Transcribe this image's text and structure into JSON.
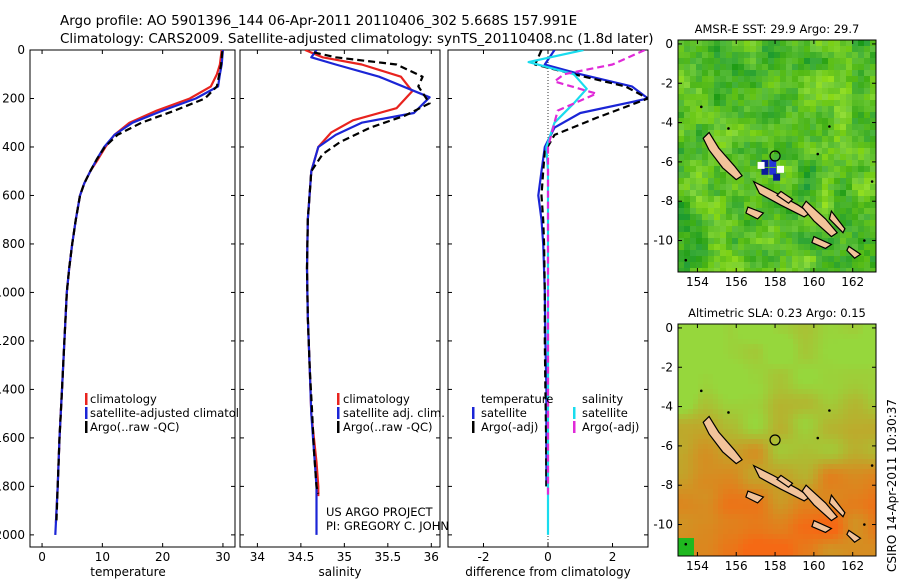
{
  "header": {
    "line1": "Argo profile: AO 5901396_144 06-Apr-2011 20110406_302 5.668S 157.991E",
    "line2": "Climatology: CARS2009. Satellite-adjusted climatology: synTS_20110408.nc (1.8d later)"
  },
  "side_label": "CSIRO 14-Apr-2011 10:30:37",
  "colors": {
    "climatology": "#e8231e",
    "satellite": "#1b25d6",
    "argo": "#000000",
    "cyan": "#19dcee",
    "magenta": "#e02ad8"
  },
  "chart_data": [
    {
      "type": "line",
      "xlabel": "temperature",
      "ylim": [
        2050,
        0
      ],
      "xlim": [
        -2,
        32
      ],
      "yticks": [
        "0",
        "200",
        "400",
        "600",
        "800",
        "1000",
        "1200",
        "1400",
        "1600",
        "1800",
        "2000"
      ],
      "xticks": [
        "0",
        "10",
        "20",
        "30"
      ],
      "legend": [
        "climatology",
        "satellite-adjusted climatology",
        "Argo(..raw -QC)"
      ],
      "series": [
        {
          "name": "climatology",
          "style": "solid",
          "color": "climatology",
          "x": [
            29.8,
            29.5,
            29.0,
            28.0,
            24.5,
            19.0,
            14.5,
            12.0,
            10.5,
            9.3,
            8.0,
            7.0,
            6.3,
            5.6,
            5.0,
            4.5,
            4.1,
            3.7,
            3.3,
            2.9,
            2.6,
            2.3
          ],
          "y": [
            0,
            60,
            100,
            150,
            200,
            250,
            300,
            350,
            400,
            450,
            500,
            550,
            600,
            700,
            800,
            900,
            1000,
            1200,
            1400,
            1600,
            1800,
            1950
          ]
        },
        {
          "name": "satellite-adjusted climatology",
          "style": "solid",
          "color": "satellite",
          "x": [
            30.0,
            29.8,
            29.5,
            29.2,
            25.5,
            20.0,
            15.0,
            12.0,
            10.3,
            9.1,
            8.0,
            7.0,
            6.3,
            5.6,
            5.0,
            4.5,
            4.1,
            3.7,
            3.3,
            2.9,
            2.6,
            2.3,
            2.2
          ],
          "y": [
            0,
            60,
            100,
            150,
            200,
            250,
            300,
            350,
            400,
            450,
            500,
            550,
            600,
            700,
            800,
            900,
            1000,
            1200,
            1400,
            1600,
            1800,
            1950,
            2000
          ]
        },
        {
          "name": "Argo(..raw -QC)",
          "style": "dashed",
          "color": "argo",
          "x": [
            29.9,
            29.7,
            29.4,
            29.0,
            27.0,
            22.0,
            16.5,
            12.5,
            10.4,
            9.1,
            8.0,
            7.0,
            6.3,
            5.6,
            5.0,
            4.5,
            4.1,
            3.7,
            3.3,
            2.9,
            2.6,
            2.4
          ],
          "y": [
            5,
            60,
            100,
            150,
            200,
            250,
            300,
            350,
            400,
            450,
            500,
            550,
            600,
            700,
            800,
            900,
            1000,
            1200,
            1400,
            1600,
            1800,
            1940
          ]
        }
      ]
    },
    {
      "type": "line",
      "xlabel": "salinity",
      "ylim": [
        2050,
        0
      ],
      "xlim": [
        33.8,
        36.1
      ],
      "xticks": [
        "34",
        "34.5",
        "35",
        "35.5",
        "36"
      ],
      "legend": [
        "climatology",
        "satellite adj. clim.",
        "Argo(..raw -QC)"
      ],
      "series": [
        {
          "name": "climatology",
          "style": "solid",
          "color": "climatology",
          "x": [
            34.55,
            34.75,
            35.2,
            35.65,
            35.78,
            35.6,
            35.1,
            34.85,
            34.7,
            34.62,
            34.58,
            34.57,
            34.58,
            34.6,
            34.62,
            34.65,
            34.68,
            34.7,
            34.7
          ],
          "y": [
            0,
            30,
            60,
            110,
            170,
            240,
            290,
            340,
            400,
            500,
            700,
            900,
            1100,
            1300,
            1500,
            1600,
            1700,
            1800,
            1840
          ]
        },
        {
          "name": "satellite adj. clim.",
          "style": "solid",
          "color": "satellite",
          "x": [
            34.68,
            34.62,
            34.9,
            35.4,
            35.98,
            35.8,
            35.2,
            34.9,
            34.7,
            34.62,
            34.58,
            34.57,
            34.58,
            34.6,
            34.62,
            34.64,
            34.66,
            34.68,
            34.68
          ],
          "y": [
            0,
            30,
            60,
            110,
            195,
            260,
            300,
            350,
            400,
            500,
            700,
            900,
            1100,
            1300,
            1500,
            1600,
            1700,
            1800,
            2000
          ]
        },
        {
          "name": "Argo(..raw -QC)",
          "style": "dashed",
          "color": "argo",
          "x": [
            34.65,
            34.9,
            35.6,
            35.9,
            35.85,
            35.98,
            35.7,
            35.3,
            34.95,
            34.75,
            34.62,
            34.58,
            34.57,
            34.58,
            34.6,
            34.63,
            34.65,
            34.68,
            34.7
          ],
          "y": [
            10,
            30,
            60,
            110,
            150,
            220,
            270,
            320,
            380,
            430,
            500,
            700,
            900,
            1100,
            1300,
            1500,
            1650,
            1800,
            1830
          ]
        }
      ]
    },
    {
      "type": "line",
      "xlabel": "difference from climatology",
      "ylim": [
        2050,
        0
      ],
      "xlim": [
        -3.1,
        3.1
      ],
      "xticks": [
        "-2",
        "0",
        "2"
      ],
      "legend": [
        "temperature",
        "satellite",
        "Argo(-adj)",
        "salinity",
        "satellite",
        "Argo(-adj)"
      ],
      "series": [
        {
          "name": "temperature satellite",
          "style": "solid",
          "color": "satellite",
          "x": [
            0.2,
            -0.1,
            1.0,
            2.6,
            3.1,
            1.0,
            0.2,
            -0.1,
            -0.2,
            -0.3,
            -0.2,
            -0.15,
            -0.1,
            -0.08,
            -0.05,
            -0.05,
            -0.05
          ],
          "y": [
            0,
            60,
            100,
            150,
            200,
            260,
            320,
            400,
            500,
            600,
            700,
            800,
            1000,
            1200,
            1400,
            1600,
            1800
          ]
        },
        {
          "name": "temperature Argo(-adj)",
          "style": "dashed",
          "color": "argo",
          "x": [
            -0.2,
            -0.4,
            0.8,
            2.4,
            3.1,
            1.5,
            0.2,
            -0.1,
            -0.15,
            -0.2,
            -0.15,
            -0.12,
            -0.1,
            -0.1,
            -0.08,
            -0.06,
            -0.05
          ],
          "y": [
            0,
            60,
            100,
            150,
            200,
            280,
            350,
            420,
            500,
            600,
            700,
            800,
            1000,
            1200,
            1400,
            1600,
            1800
          ]
        },
        {
          "name": "salinity satellite",
          "style": "solid",
          "color": "cyan",
          "x": [
            1.1,
            -0.6,
            0.8,
            1.2,
            0.8,
            0.2,
            -0.05,
            0.0,
            0.0,
            0.0,
            0.0,
            0.0,
            0.0,
            0.0,
            0.0,
            0.0
          ],
          "y": [
            0,
            50,
            100,
            160,
            220,
            300,
            400,
            500,
            700,
            900,
            1100,
            1300,
            1500,
            1700,
            1900,
            2000
          ]
        },
        {
          "name": "salinity Argo(-adj)",
          "style": "dashed",
          "color": "magenta",
          "x": [
            3.0,
            2.0,
            0.5,
            0.2,
            1.5,
            0.3,
            0.0,
            0.0,
            0.0,
            0.0,
            0.0,
            0.0,
            0.0
          ],
          "y": [
            0,
            60,
            100,
            130,
            180,
            250,
            400,
            600,
            900,
            1200,
            1500,
            1700,
            1850
          ]
        }
      ]
    },
    {
      "type": "heatmap",
      "title": "AMSR-E SST: 29.9 Argo: 29.7",
      "xticks": [
        "154",
        "156",
        "158",
        "160",
        "162"
      ],
      "yticks": [
        "0",
        "-2",
        "-4",
        "-6",
        "-8",
        "-10"
      ],
      "xlim": [
        153,
        163.2
      ],
      "ylim": [
        -11.6,
        0.2
      ],
      "marker": {
        "lon": 158.0,
        "lat": -5.7
      }
    },
    {
      "type": "heatmap",
      "title": "Altimetric SLA: 0.23 Argo: 0.15",
      "xticks": [
        "154",
        "156",
        "158",
        "160",
        "162"
      ],
      "yticks": [
        "0",
        "-2",
        "-4",
        "-6",
        "-8",
        "-10"
      ],
      "xlim": [
        153,
        163.2
      ],
      "ylim": [
        -11.6,
        0.2
      ],
      "marker": {
        "lon": 158.0,
        "lat": -5.7
      }
    }
  ],
  "footer": {
    "project": "US ARGO PROJECT",
    "pi": "PI: GREGORY C. JOHNSON"
  }
}
